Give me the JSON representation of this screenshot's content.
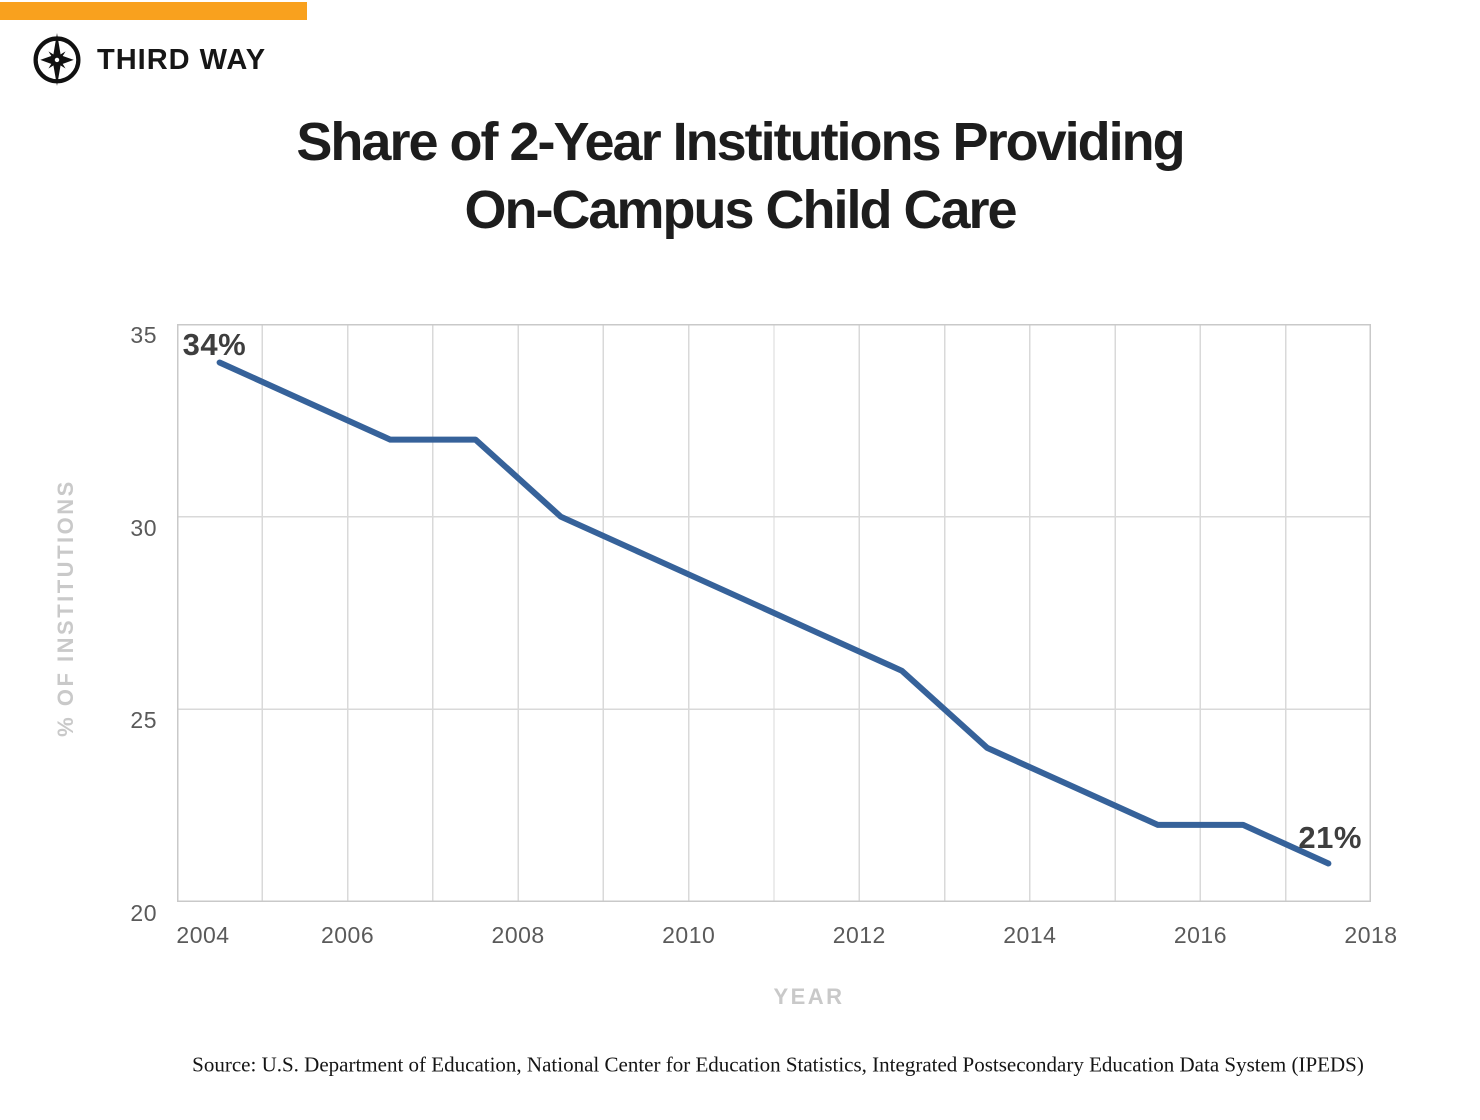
{
  "header": {
    "brand": "THIRD WAY",
    "accent_color": "#F9A11E"
  },
  "title": {
    "line1": "Share of 2-Year Institutions Providing",
    "line2": "On-Campus Child Care"
  },
  "chart_data": {
    "type": "line",
    "title": "Share of 2-Year Institutions Providing On-Campus Child Care",
    "x": [
      2004,
      2005,
      2006,
      2007,
      2008,
      2009,
      2010,
      2011,
      2012,
      2013,
      2014,
      2015,
      2016,
      2017
    ],
    "values": [
      34,
      33,
      32,
      32,
      30,
      29,
      28,
      27,
      26,
      24,
      23,
      22,
      22,
      21
    ],
    "xlabel": "YEAR",
    "ylabel": "% OF INSTITUTIONS",
    "xlim": [
      2004,
      2018
    ],
    "ylim": [
      20,
      35
    ],
    "yticks": [
      35,
      30,
      25,
      20
    ],
    "xticks": [
      2004,
      2006,
      2008,
      2010,
      2012,
      2014,
      2016,
      2018
    ],
    "grid": true,
    "legend": "none",
    "annotations": [
      {
        "text": "34%",
        "point": "first"
      },
      {
        "text": "21%",
        "point": "last"
      }
    ],
    "colors": {
      "line": "#36629A",
      "grid": "#D9D9D9",
      "border": "#C9C9C9",
      "tick_text": "#5A5A5A",
      "axis_title": "#C9C9C9",
      "data_label": "#3E3E3E"
    }
  },
  "source": "Source: U.S. Department of Education, National Center for Education Statistics, Integrated Postsecondary Education Data System (IPEDS)"
}
